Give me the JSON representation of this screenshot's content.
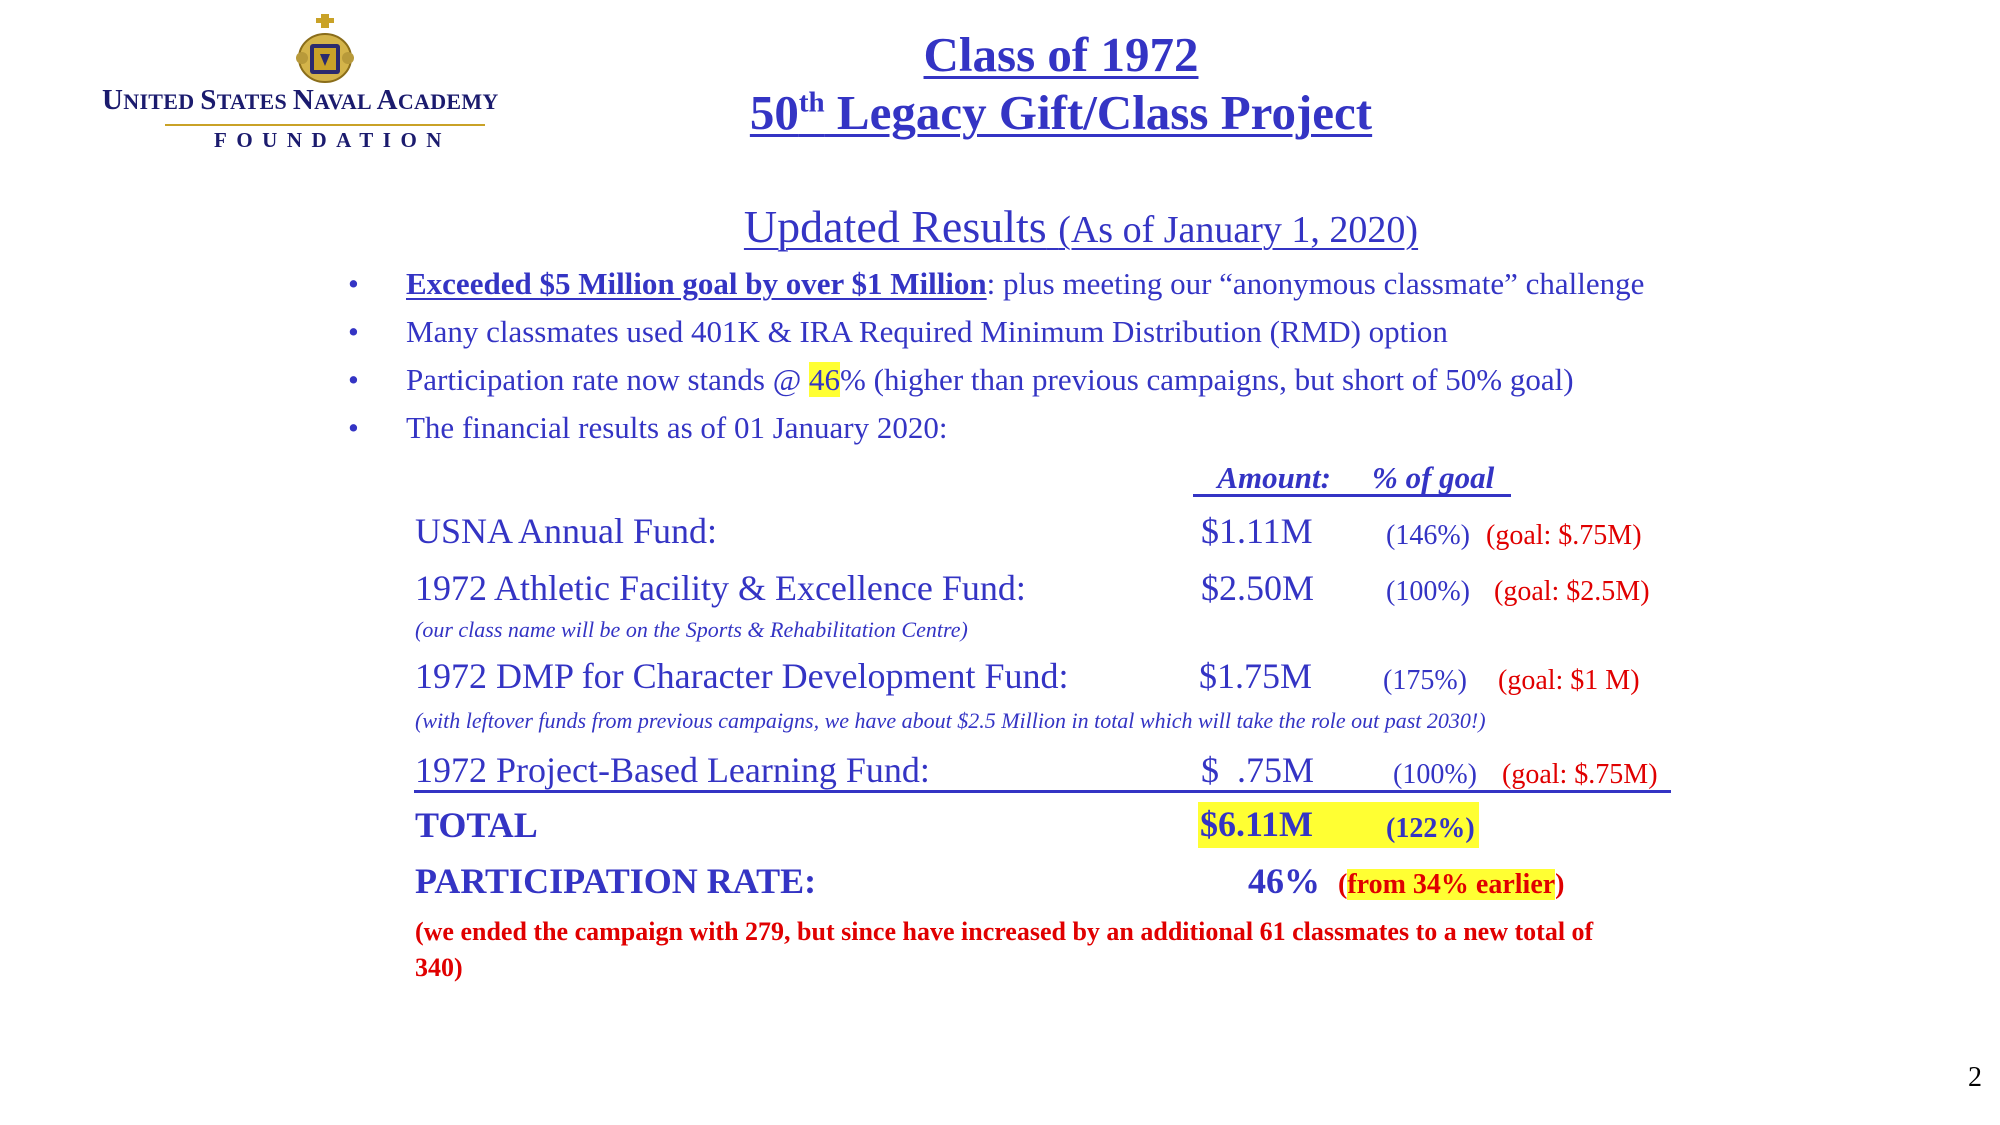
{
  "logo": {
    "org_name_first_letters": [
      "U",
      "S",
      "N",
      "A"
    ],
    "org_name_words": [
      "NITED ",
      "TATES ",
      "AVAL ",
      "CADEMY"
    ],
    "sub": "FOUNDATION"
  },
  "title": {
    "line1": "Class of 1972",
    "line2_prefix": "50",
    "line2_sup": "th",
    "line2_suffix": " Legacy Gift/Class Project"
  },
  "updated": {
    "heading": "Updated Results",
    "as_of": "(As of January 1, 2020)"
  },
  "bullets": [
    {
      "bold": "Exceeded $5 Million goal by over $1 Million",
      "rest": ": plus meeting our “anonymous classmate” challenge"
    },
    {
      "text": "Many classmates used 401K & IRA Required Minimum Distribution (RMD) option"
    },
    {
      "pre": "Participation rate now stands @ ",
      "highlight": "46",
      "post": "% (higher than previous campaigns, but short of 50% goal)"
    },
    {
      "text": "The financial results as of 01 January 2020:"
    }
  ],
  "bullet_glyph": "•",
  "table": {
    "header_amount": "Amount:",
    "header_pct": "% of goal",
    "rows": [
      {
        "fund": "USNA Annual Fund:",
        "amount": "$1.11M",
        "pct": "(146%)",
        "goal": "(goal: $.75M)"
      },
      {
        "fund": "1972 Athletic Facility & Excellence Fund:",
        "amount": "$2.50M",
        "pct": "(100%)",
        "goal": "(goal: $2.5M)",
        "note": "(our class name will be on the Sports & Rehabilitation Centre)"
      },
      {
        "fund": "1972 DMP for Character Development Fund:",
        "amount": "$1.75M",
        "pct": "(175%)",
        "goal": "(goal: $1 M)",
        "note": "(with leftover funds from previous campaigns, we have about $2.5 Million in total which will take the role out past 2030!)"
      },
      {
        "fund": "1972 Project-Based Learning Fund:",
        "amount": "$  .75M",
        "pct": "(100%)",
        "goal": "(goal: $.75M)"
      }
    ],
    "total_label": "TOTAL",
    "total_amount": "$6.11M",
    "total_pct": "(122%)",
    "participation_label": "PARTICIPATION RATE:",
    "participation_value": "46%",
    "participation_prev_open": "(",
    "participation_prev": "from 34% earlier",
    "participation_prev_close": ")",
    "footnote_line1": "(we ended the campaign with 279, but since have increased by an additional 61 classmates to a new total of",
    "footnote_line2": "340)"
  },
  "page_number": "2",
  "colors": {
    "text_blue": "#3434c4",
    "red": "#e00000",
    "highlight": "#ffff33",
    "navy": "#1b1b6e",
    "gold": "#c9a227"
  }
}
